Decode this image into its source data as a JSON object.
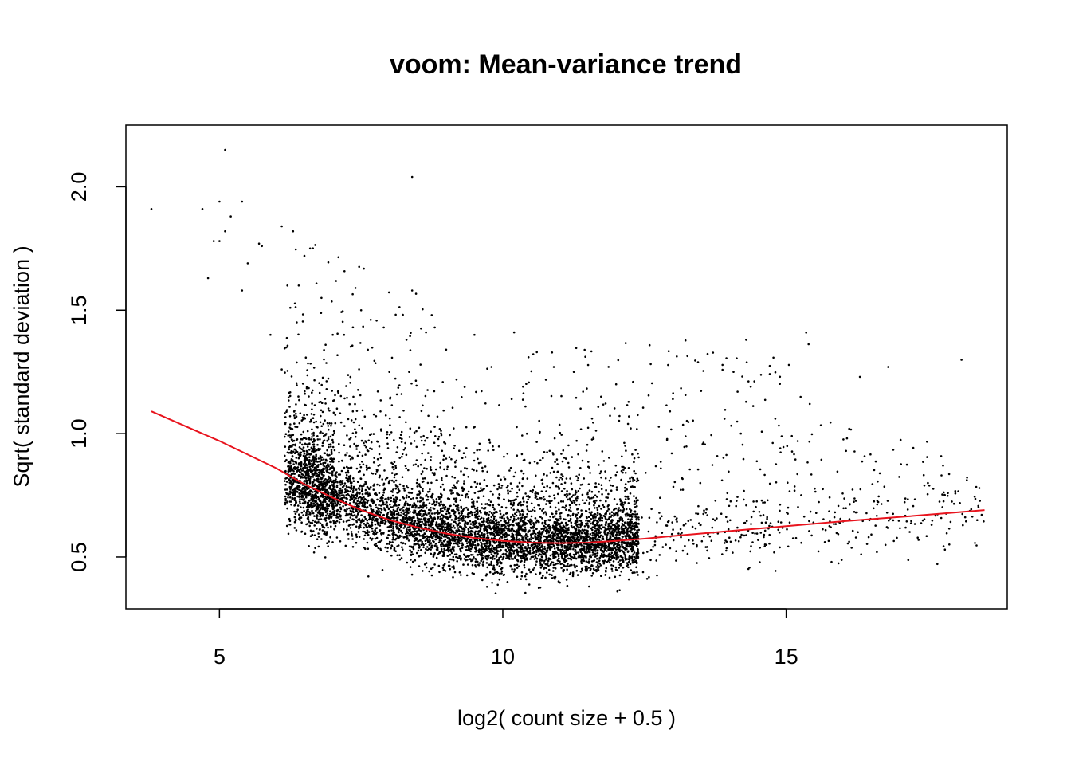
{
  "chart_data": {
    "type": "scatter",
    "title": "voom: Mean-variance trend",
    "xlabel": "log2( count size + 0.5 )",
    "ylabel": "Sqrt( standard deviation )",
    "xlim": [
      3.35,
      18.9
    ],
    "ylim": [
      0.29,
      2.25
    ],
    "x_ticks": [
      5,
      10,
      15
    ],
    "y_ticks": [
      0.5,
      1.0,
      1.5,
      2.0
    ],
    "x_tick_labels": [
      "5",
      "10",
      "15"
    ],
    "y_tick_labels": [
      "0.5",
      "1.0",
      "1.5",
      "2.0"
    ],
    "grid": false,
    "legend": "none",
    "point_color": "#000000",
    "trend_color": "#e8131d",
    "trend_line": {
      "name": "",
      "x": [
        3.8,
        4.5,
        5.0,
        5.5,
        6.0,
        6.5,
        7.0,
        7.5,
        8.0,
        8.5,
        9.0,
        9.5,
        10.0,
        10.5,
        11.0,
        11.5,
        12.0,
        12.5,
        13.0,
        14.0,
        15.0,
        16.0,
        17.0,
        18.5
      ],
      "y": [
        1.09,
        1.02,
        0.97,
        0.915,
        0.86,
        0.795,
        0.74,
        0.69,
        0.65,
        0.62,
        0.595,
        0.577,
        0.565,
        0.558,
        0.556,
        0.558,
        0.565,
        0.574,
        0.585,
        0.605,
        0.625,
        0.645,
        0.662,
        0.69
      ]
    },
    "outlier_points": {
      "x": [
        3.8,
        4.7,
        5.0,
        5.1,
        5.2,
        5.4,
        4.9,
        5.0,
        5.1,
        4.8,
        5.5,
        5.4,
        5.7,
        5.75,
        6.1,
        6.3,
        6.6,
        6.5,
        6.4,
        6.2,
        5.9,
        6.8,
        7.0,
        7.2,
        7.5,
        7.9,
        8.3,
        8.4,
        8.4,
        8.8,
        9.0,
        9.5,
        9.8,
        10.2,
        10.6,
        10.9,
        12.0,
        13.0,
        14.2,
        15.1,
        16.3,
        16.8,
        17.5,
        17.8,
        16.6,
        15.8,
        6.1,
        6.25,
        7.4,
        8.0
      ],
      "y": [
        1.91,
        1.91,
        1.94,
        2.15,
        1.88,
        1.94,
        1.78,
        1.78,
        1.82,
        1.63,
        1.69,
        1.58,
        1.77,
        1.76,
        1.84,
        1.82,
        1.75,
        1.72,
        1.6,
        1.6,
        1.4,
        1.55,
        1.4,
        1.4,
        1.5,
        1.43,
        1.38,
        2.04,
        1.58,
        1.43,
        1.34,
        1.4,
        1.27,
        1.41,
        1.33,
        1.27,
        1.2,
        1.14,
        1.0,
        0.99,
        1.23,
        1.27,
        0.8,
        0.53,
        0.52,
        0.48,
        1.26,
        1.51,
        1.59,
        1.25
      ]
    }
  }
}
